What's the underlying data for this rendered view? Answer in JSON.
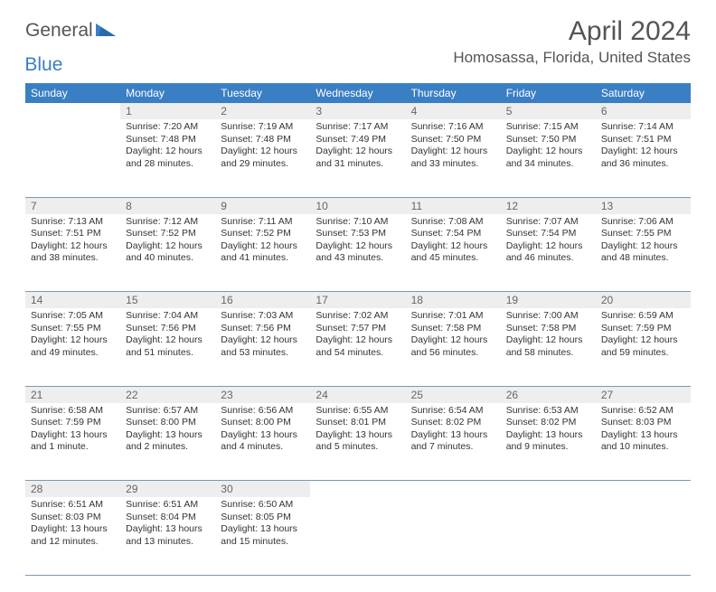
{
  "logo": {
    "general": "General",
    "blue": "Blue"
  },
  "title": "April 2024",
  "location": "Homosassa, Florida, United States",
  "colors": {
    "header_bg": "#3a7fc4",
    "header_text": "#ffffff",
    "daynum_bg": "#eeeeee",
    "daynum_text": "#666666",
    "cell_text": "#333333",
    "rule": "#7a98b5",
    "title_text": "#555555"
  },
  "weekdays": [
    "Sunday",
    "Monday",
    "Tuesday",
    "Wednesday",
    "Thursday",
    "Friday",
    "Saturday"
  ],
  "weeks": [
    {
      "nums": [
        "",
        "1",
        "2",
        "3",
        "4",
        "5",
        "6"
      ],
      "cells": [
        null,
        {
          "sunrise": "Sunrise: 7:20 AM",
          "sunset": "Sunset: 7:48 PM",
          "day1": "Daylight: 12 hours",
          "day2": "and 28 minutes."
        },
        {
          "sunrise": "Sunrise: 7:19 AM",
          "sunset": "Sunset: 7:48 PM",
          "day1": "Daylight: 12 hours",
          "day2": "and 29 minutes."
        },
        {
          "sunrise": "Sunrise: 7:17 AM",
          "sunset": "Sunset: 7:49 PM",
          "day1": "Daylight: 12 hours",
          "day2": "and 31 minutes."
        },
        {
          "sunrise": "Sunrise: 7:16 AM",
          "sunset": "Sunset: 7:50 PM",
          "day1": "Daylight: 12 hours",
          "day2": "and 33 minutes."
        },
        {
          "sunrise": "Sunrise: 7:15 AM",
          "sunset": "Sunset: 7:50 PM",
          "day1": "Daylight: 12 hours",
          "day2": "and 34 minutes."
        },
        {
          "sunrise": "Sunrise: 7:14 AM",
          "sunset": "Sunset: 7:51 PM",
          "day1": "Daylight: 12 hours",
          "day2": "and 36 minutes."
        }
      ]
    },
    {
      "nums": [
        "7",
        "8",
        "9",
        "10",
        "11",
        "12",
        "13"
      ],
      "cells": [
        {
          "sunrise": "Sunrise: 7:13 AM",
          "sunset": "Sunset: 7:51 PM",
          "day1": "Daylight: 12 hours",
          "day2": "and 38 minutes."
        },
        {
          "sunrise": "Sunrise: 7:12 AM",
          "sunset": "Sunset: 7:52 PM",
          "day1": "Daylight: 12 hours",
          "day2": "and 40 minutes."
        },
        {
          "sunrise": "Sunrise: 7:11 AM",
          "sunset": "Sunset: 7:52 PM",
          "day1": "Daylight: 12 hours",
          "day2": "and 41 minutes."
        },
        {
          "sunrise": "Sunrise: 7:10 AM",
          "sunset": "Sunset: 7:53 PM",
          "day1": "Daylight: 12 hours",
          "day2": "and 43 minutes."
        },
        {
          "sunrise": "Sunrise: 7:08 AM",
          "sunset": "Sunset: 7:54 PM",
          "day1": "Daylight: 12 hours",
          "day2": "and 45 minutes."
        },
        {
          "sunrise": "Sunrise: 7:07 AM",
          "sunset": "Sunset: 7:54 PM",
          "day1": "Daylight: 12 hours",
          "day2": "and 46 minutes."
        },
        {
          "sunrise": "Sunrise: 7:06 AM",
          "sunset": "Sunset: 7:55 PM",
          "day1": "Daylight: 12 hours",
          "day2": "and 48 minutes."
        }
      ]
    },
    {
      "nums": [
        "14",
        "15",
        "16",
        "17",
        "18",
        "19",
        "20"
      ],
      "cells": [
        {
          "sunrise": "Sunrise: 7:05 AM",
          "sunset": "Sunset: 7:55 PM",
          "day1": "Daylight: 12 hours",
          "day2": "and 49 minutes."
        },
        {
          "sunrise": "Sunrise: 7:04 AM",
          "sunset": "Sunset: 7:56 PM",
          "day1": "Daylight: 12 hours",
          "day2": "and 51 minutes."
        },
        {
          "sunrise": "Sunrise: 7:03 AM",
          "sunset": "Sunset: 7:56 PM",
          "day1": "Daylight: 12 hours",
          "day2": "and 53 minutes."
        },
        {
          "sunrise": "Sunrise: 7:02 AM",
          "sunset": "Sunset: 7:57 PM",
          "day1": "Daylight: 12 hours",
          "day2": "and 54 minutes."
        },
        {
          "sunrise": "Sunrise: 7:01 AM",
          "sunset": "Sunset: 7:58 PM",
          "day1": "Daylight: 12 hours",
          "day2": "and 56 minutes."
        },
        {
          "sunrise": "Sunrise: 7:00 AM",
          "sunset": "Sunset: 7:58 PM",
          "day1": "Daylight: 12 hours",
          "day2": "and 58 minutes."
        },
        {
          "sunrise": "Sunrise: 6:59 AM",
          "sunset": "Sunset: 7:59 PM",
          "day1": "Daylight: 12 hours",
          "day2": "and 59 minutes."
        }
      ]
    },
    {
      "nums": [
        "21",
        "22",
        "23",
        "24",
        "25",
        "26",
        "27"
      ],
      "cells": [
        {
          "sunrise": "Sunrise: 6:58 AM",
          "sunset": "Sunset: 7:59 PM",
          "day1": "Daylight: 13 hours",
          "day2": "and 1 minute."
        },
        {
          "sunrise": "Sunrise: 6:57 AM",
          "sunset": "Sunset: 8:00 PM",
          "day1": "Daylight: 13 hours",
          "day2": "and 2 minutes."
        },
        {
          "sunrise": "Sunrise: 6:56 AM",
          "sunset": "Sunset: 8:00 PM",
          "day1": "Daylight: 13 hours",
          "day2": "and 4 minutes."
        },
        {
          "sunrise": "Sunrise: 6:55 AM",
          "sunset": "Sunset: 8:01 PM",
          "day1": "Daylight: 13 hours",
          "day2": "and 5 minutes."
        },
        {
          "sunrise": "Sunrise: 6:54 AM",
          "sunset": "Sunset: 8:02 PM",
          "day1": "Daylight: 13 hours",
          "day2": "and 7 minutes."
        },
        {
          "sunrise": "Sunrise: 6:53 AM",
          "sunset": "Sunset: 8:02 PM",
          "day1": "Daylight: 13 hours",
          "day2": "and 9 minutes."
        },
        {
          "sunrise": "Sunrise: 6:52 AM",
          "sunset": "Sunset: 8:03 PM",
          "day1": "Daylight: 13 hours",
          "day2": "and 10 minutes."
        }
      ]
    },
    {
      "nums": [
        "28",
        "29",
        "30",
        "",
        "",
        "",
        ""
      ],
      "cells": [
        {
          "sunrise": "Sunrise: 6:51 AM",
          "sunset": "Sunset: 8:03 PM",
          "day1": "Daylight: 13 hours",
          "day2": "and 12 minutes."
        },
        {
          "sunrise": "Sunrise: 6:51 AM",
          "sunset": "Sunset: 8:04 PM",
          "day1": "Daylight: 13 hours",
          "day2": "and 13 minutes."
        },
        {
          "sunrise": "Sunrise: 6:50 AM",
          "sunset": "Sunset: 8:05 PM",
          "day1": "Daylight: 13 hours",
          "day2": "and 15 minutes."
        },
        null,
        null,
        null,
        null
      ]
    }
  ]
}
